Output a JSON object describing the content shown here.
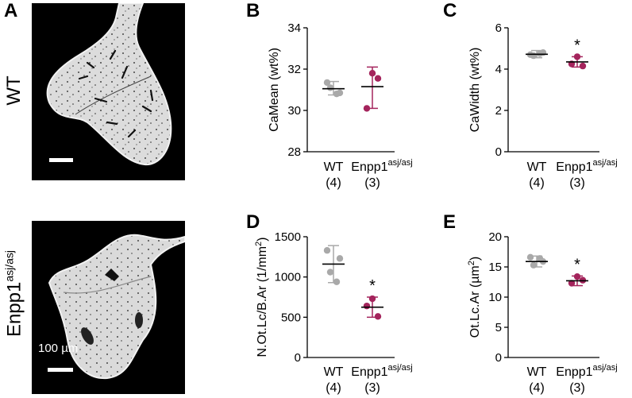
{
  "panel_labels": {
    "a": "A",
    "b": "B",
    "c": "C",
    "d": "D",
    "e": "E"
  },
  "micrographs": {
    "top_row_label": "WT",
    "bottom_row_label": "Enpp1",
    "bottom_row_label_sup": "asj/asj",
    "scale_bar_label": "100 µm"
  },
  "colors": {
    "wt": "#a9a9a9",
    "enpp1": "#a4245c",
    "bone_fill": "#d9d9d9",
    "background": "#000000"
  },
  "chart_data": [
    {
      "panel": "B",
      "type": "scatter",
      "ylabel": "CaMean (wt%)",
      "ylabel_sup": "",
      "ylim": [
        28,
        34
      ],
      "yticks": [
        28,
        30,
        32,
        34
      ],
      "categories": [
        {
          "name": "WT",
          "n": "(4)",
          "sup": ""
        },
        {
          "name": "Enpp1",
          "n": "(3)",
          "sup": "asj/asj"
        }
      ],
      "groups": [
        {
          "points": [
            31.35,
            30.85,
            31.1,
            30.8
          ],
          "mean": 31.05,
          "err": [
            30.75,
            31.4
          ]
        },
        {
          "points": [
            31.8,
            30.1,
            31.55
          ],
          "mean": 31.15,
          "err": [
            30.1,
            32.1
          ]
        }
      ],
      "significance": ""
    },
    {
      "panel": "C",
      "type": "scatter",
      "ylabel": "CaWidth (wt%)",
      "ylabel_sup": "",
      "ylim": [
        0,
        6
      ],
      "yticks": [
        0,
        2,
        4,
        6
      ],
      "categories": [
        {
          "name": "WT",
          "n": "(4)",
          "sup": ""
        },
        {
          "name": "Enpp1",
          "n": "(3)",
          "sup": "asj/asj"
        }
      ],
      "groups": [
        {
          "points": [
            4.7,
            4.8,
            4.65,
            4.75
          ],
          "mean": 4.72,
          "err": [
            4.55,
            4.9
          ]
        },
        {
          "points": [
            4.6,
            4.25,
            4.15
          ],
          "mean": 4.35,
          "err": [
            4.1,
            4.6
          ]
        }
      ],
      "significance": "*"
    },
    {
      "panel": "D",
      "type": "scatter",
      "ylabel": "N.Ot.Lc/B.Ar (1/mm",
      "ylabel_sup": "2",
      "ylabel_tail": ")",
      "ylim": [
        0,
        1500
      ],
      "yticks": [
        0,
        500,
        1000,
        1500
      ],
      "categories": [
        {
          "name": "WT",
          "n": "(4)",
          "sup": ""
        },
        {
          "name": "Enpp1",
          "n": "(3)",
          "sup": "asj/asj"
        }
      ],
      "groups": [
        {
          "points": [
            1330,
            1230,
            1060,
            940
          ],
          "mean": 1160,
          "err": [
            930,
            1390
          ]
        },
        {
          "points": [
            730,
            640,
            510
          ],
          "mean": 625,
          "err": [
            500,
            750
          ]
        }
      ],
      "significance": "*"
    },
    {
      "panel": "E",
      "type": "scatter",
      "ylabel": "Ot.Lc.Ar (µm",
      "ylabel_sup": "2",
      "ylabel_tail": ")",
      "ylim": [
        0,
        20
      ],
      "yticks": [
        0,
        5,
        10,
        15,
        20
      ],
      "categories": [
        {
          "name": "WT",
          "n": "(4)",
          "sup": ""
        },
        {
          "name": "Enpp1",
          "n": "(3)",
          "sup": "asj/asj"
        }
      ],
      "groups": [
        {
          "points": [
            16.6,
            15.9,
            15.3,
            16.4
          ],
          "mean": 15.9,
          "err": [
            15.0,
            16.8
          ]
        },
        {
          "points": [
            13.4,
            12.3,
            12.8
          ],
          "mean": 12.7,
          "err": [
            11.9,
            13.5
          ]
        }
      ],
      "significance": "*"
    }
  ]
}
